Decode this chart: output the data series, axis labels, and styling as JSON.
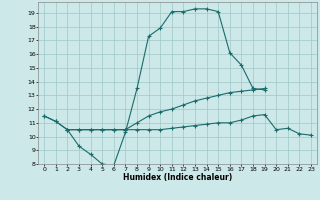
{
  "title": "",
  "xlabel": "Humidex (Indice chaleur)",
  "xlim": [
    -0.5,
    23.5
  ],
  "ylim": [
    8,
    19.8
  ],
  "yticks": [
    8,
    9,
    10,
    11,
    12,
    13,
    14,
    15,
    16,
    17,
    18,
    19
  ],
  "xticks": [
    0,
    1,
    2,
    3,
    4,
    5,
    6,
    7,
    8,
    9,
    10,
    11,
    12,
    13,
    14,
    15,
    16,
    17,
    18,
    19,
    20,
    21,
    22,
    23
  ],
  "bg_color": "#cde8e8",
  "grid_color": "#a0c8c8",
  "line_color": "#1a6b6b",
  "line1_x": [
    0,
    1,
    2,
    3,
    4,
    5,
    6,
    7,
    8,
    9,
    10,
    11,
    12,
    13,
    14,
    15,
    16,
    17,
    18,
    19
  ],
  "line1_y": [
    11.5,
    11.1,
    10.5,
    9.3,
    8.7,
    8.0,
    7.9,
    10.3,
    13.5,
    17.3,
    17.9,
    19.1,
    19.1,
    19.3,
    19.3,
    19.1,
    16.1,
    15.2,
    13.5,
    13.4
  ],
  "line2_x": [
    0,
    1,
    2,
    3,
    4,
    5,
    6,
    7,
    8,
    9,
    10,
    11,
    12,
    13,
    14,
    15,
    16,
    17,
    18,
    19
  ],
  "line2_y": [
    11.5,
    11.1,
    10.5,
    10.5,
    10.5,
    10.5,
    10.5,
    10.5,
    11.0,
    11.5,
    11.8,
    12.0,
    12.3,
    12.6,
    12.8,
    13.0,
    13.2,
    13.3,
    13.4,
    13.5
  ],
  "line3_x": [
    2,
    3,
    4,
    5,
    6,
    7,
    8,
    9,
    10,
    11,
    12,
    13,
    14,
    15,
    16,
    17,
    18,
    19,
    20,
    21,
    22,
    23
  ],
  "line3_y": [
    10.5,
    10.5,
    10.5,
    10.5,
    10.5,
    10.5,
    10.5,
    10.5,
    10.5,
    10.6,
    10.7,
    10.8,
    10.9,
    11.0,
    11.0,
    11.2,
    11.5,
    11.6,
    10.5,
    10.6,
    10.2,
    10.1
  ]
}
